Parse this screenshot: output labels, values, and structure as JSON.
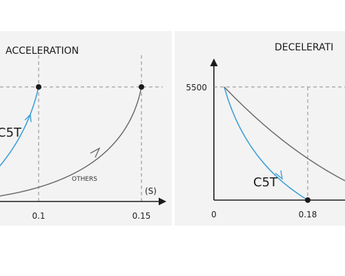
{
  "chart_data": [
    {
      "type": "line",
      "title": "ACCELERATION",
      "xlabel": "(S)",
      "x_ticks": [
        "0.1",
        "0.15"
      ],
      "markers": [
        0.1,
        0.15
      ],
      "series": [
        {
          "name": "C5T",
          "color": "#3f9fd8",
          "x": [
            0.0,
            0.02,
            0.04,
            0.06,
            0.08,
            0.1
          ],
          "y": [
            0.0,
            0.04,
            0.12,
            0.27,
            0.55,
            1.0
          ]
        },
        {
          "name": "OTHERS",
          "color": "#666666",
          "x": [
            0.0,
            0.03,
            0.06,
            0.09,
            0.12,
            0.15
          ],
          "y": [
            0.0,
            0.05,
            0.14,
            0.3,
            0.58,
            1.0
          ]
        }
      ]
    },
    {
      "type": "line",
      "title": "DECELERATI",
      "y_tick_label": "5500",
      "x_ticks": [
        "0",
        "0.18"
      ],
      "series": [
        {
          "name": "C5T",
          "color": "#3f9fd8",
          "x": [
            0.0,
            0.04,
            0.08,
            0.12,
            0.15,
            0.18
          ],
          "y": [
            5500,
            3900,
            2500,
            1300,
            550,
            0
          ]
        },
        {
          "name": "",
          "color": "#666666",
          "x": [
            0.0,
            0.05,
            0.1,
            0.15,
            0.2,
            0.25
          ],
          "y": [
            5500,
            4400,
            3350,
            2400,
            1550,
            800
          ]
        }
      ]
    }
  ]
}
